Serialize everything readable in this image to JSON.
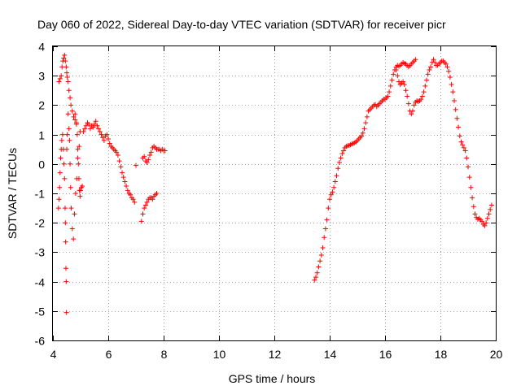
{
  "chart_data": {
    "type": "scatter",
    "title": "Day 060 of 2022, Sidereal Day-to-day VTEC variation (SDTVAR) for receiver picr",
    "xlabel": "GPS time / hours",
    "ylabel": "SDTVAR / TECUs",
    "xlim": [
      4,
      20
    ],
    "ylim": [
      -6,
      4
    ],
    "xticks": [
      "4",
      "6",
      "8",
      "10",
      "12",
      "14",
      "16",
      "18",
      "20"
    ],
    "yticks": [
      "4",
      "3",
      "2",
      "1",
      "0",
      "-1",
      "-2",
      "-3",
      "-4",
      "-5",
      "-6"
    ],
    "grid": true,
    "marker": "plus",
    "color": "#ff0000",
    "series": [
      {
        "name": "SDTVAR",
        "points": [
          [
            4.22,
            2.8
          ],
          [
            4.26,
            2.9
          ],
          [
            4.3,
            3.0
          ],
          [
            4.33,
            3.3
          ],
          [
            4.36,
            3.5
          ],
          [
            4.39,
            3.6
          ],
          [
            4.42,
            3.7
          ],
          [
            4.45,
            3.5
          ],
          [
            4.48,
            3.3
          ],
          [
            4.5,
            3.1
          ],
          [
            4.52,
            2.95
          ],
          [
            4.55,
            2.8
          ],
          [
            4.58,
            2.5
          ],
          [
            4.62,
            2.25
          ],
          [
            4.65,
            2.0
          ],
          [
            4.7,
            1.8
          ],
          [
            4.75,
            1.6
          ],
          [
            4.8,
            1.5
          ],
          [
            4.85,
            1.35
          ],
          [
            4.2,
            -1.5
          ],
          [
            4.22,
            -1.2
          ],
          [
            4.24,
            -0.8
          ],
          [
            4.26,
            -0.3
          ],
          [
            4.28,
            0.2
          ],
          [
            4.3,
            0.5
          ],
          [
            4.32,
            0.8
          ],
          [
            4.35,
            1.0
          ],
          [
            4.38,
            0.5
          ],
          [
            4.4,
            0.0
          ],
          [
            4.42,
            -0.5
          ],
          [
            4.44,
            -1.5
          ],
          [
            4.45,
            -2.0
          ],
          [
            4.46,
            -2.65
          ],
          [
            4.47,
            -3.55
          ],
          [
            4.48,
            -4.0
          ],
          [
            4.49,
            -5.05
          ],
          [
            4.5,
            0.5
          ],
          [
            4.52,
            1.0
          ],
          [
            4.55,
            1.7
          ],
          [
            4.58,
            1.2
          ],
          [
            4.6,
            0.8
          ],
          [
            4.62,
            0.0
          ],
          [
            4.64,
            -0.8
          ],
          [
            4.66,
            -1.5
          ],
          [
            4.7,
            -2.2
          ],
          [
            4.74,
            -2.55
          ],
          [
            4.78,
            -1.7
          ],
          [
            4.82,
            -1.0
          ],
          [
            4.86,
            -0.5
          ],
          [
            4.9,
            0.2
          ],
          [
            4.95,
            0.6
          ],
          [
            4.98,
            1.1
          ],
          [
            4.8,
            1.7
          ],
          [
            4.85,
            1.4
          ],
          [
            4.88,
            1.0
          ],
          [
            4.9,
            0.5
          ],
          [
            4.92,
            0.0
          ],
          [
            4.94,
            -0.5
          ],
          [
            4.96,
            -0.9
          ],
          [
            4.98,
            -1.1
          ],
          [
            5.0,
            -0.9
          ],
          [
            5.03,
            -0.8
          ],
          [
            5.06,
            -0.75
          ],
          [
            5.1,
            1.1
          ],
          [
            5.15,
            1.2
          ],
          [
            5.2,
            1.3
          ],
          [
            5.25,
            1.4
          ],
          [
            5.3,
            1.35
          ],
          [
            5.35,
            1.2
          ],
          [
            5.4,
            1.3
          ],
          [
            5.45,
            1.25
          ],
          [
            5.5,
            1.35
          ],
          [
            5.55,
            1.45
          ],
          [
            5.6,
            1.3
          ],
          [
            5.65,
            1.2
          ],
          [
            5.7,
            1.1
          ],
          [
            5.75,
            1.0
          ],
          [
            5.8,
            0.9
          ],
          [
            5.85,
            0.8
          ],
          [
            5.9,
            0.95
          ],
          [
            5.95,
            1.0
          ],
          [
            6.0,
            0.85
          ],
          [
            6.05,
            0.7
          ],
          [
            6.1,
            0.6
          ],
          [
            6.15,
            0.55
          ],
          [
            6.2,
            0.5
          ],
          [
            6.25,
            0.45
          ],
          [
            6.3,
            0.4
          ],
          [
            6.35,
            0.3
          ],
          [
            6.4,
            0.1
          ],
          [
            6.45,
            -0.1
          ],
          [
            6.5,
            -0.3
          ],
          [
            6.55,
            -0.45
          ],
          [
            6.6,
            -0.6
          ],
          [
            6.65,
            -0.75
          ],
          [
            6.7,
            -0.9
          ],
          [
            6.75,
            -1.0
          ],
          [
            6.8,
            -1.05
          ],
          [
            6.85,
            -1.15
          ],
          [
            6.9,
            -1.2
          ],
          [
            6.95,
            -1.3
          ],
          [
            7.0,
            -0.05
          ],
          [
            7.2,
            -1.95
          ],
          [
            7.25,
            -1.7
          ],
          [
            7.3,
            -1.5
          ],
          [
            7.35,
            -1.4
          ],
          [
            7.4,
            -1.3
          ],
          [
            7.45,
            -1.2
          ],
          [
            7.5,
            -1.15
          ],
          [
            7.55,
            -1.15
          ],
          [
            7.6,
            -1.2
          ],
          [
            7.65,
            -1.1
          ],
          [
            7.7,
            -1.05
          ],
          [
            7.75,
            -1.0
          ],
          [
            7.25,
            0.2
          ],
          [
            7.3,
            0.25
          ],
          [
            7.35,
            0.1
          ],
          [
            7.4,
            0.05
          ],
          [
            7.45,
            0.15
          ],
          [
            7.5,
            0.3
          ],
          [
            7.55,
            0.4
          ],
          [
            7.6,
            0.55
          ],
          [
            7.65,
            0.6
          ],
          [
            7.7,
            0.55
          ],
          [
            7.75,
            0.5
          ],
          [
            7.8,
            0.5
          ],
          [
            7.85,
            0.5
          ],
          [
            7.9,
            0.45
          ],
          [
            7.95,
            0.5
          ],
          [
            8.0,
            0.45
          ],
          [
            8.05,
            0.45
          ],
          [
            13.45,
            -3.95
          ],
          [
            13.5,
            -3.85
          ],
          [
            13.55,
            -3.7
          ],
          [
            13.6,
            -3.5
          ],
          [
            13.65,
            -3.3
          ],
          [
            13.7,
            -3.1
          ],
          [
            13.75,
            -2.85
          ],
          [
            13.8,
            -2.5
          ],
          [
            13.85,
            -2.2
          ],
          [
            13.9,
            -1.9
          ],
          [
            13.95,
            -1.5
          ],
          [
            14.0,
            -1.2
          ],
          [
            14.05,
            -1.05
          ],
          [
            14.1,
            -0.95
          ],
          [
            14.15,
            -0.8
          ],
          [
            14.2,
            -0.6
          ],
          [
            14.25,
            -0.4
          ],
          [
            14.3,
            -0.15
          ],
          [
            14.35,
            0.05
          ],
          [
            14.4,
            0.2
          ],
          [
            14.45,
            0.35
          ],
          [
            14.5,
            0.45
          ],
          [
            14.55,
            0.55
          ],
          [
            14.6,
            0.6
          ],
          [
            14.65,
            0.62
          ],
          [
            14.7,
            0.63
          ],
          [
            14.75,
            0.65
          ],
          [
            14.8,
            0.68
          ],
          [
            14.85,
            0.7
          ],
          [
            14.9,
            0.72
          ],
          [
            14.95,
            0.75
          ],
          [
            15.0,
            0.8
          ],
          [
            15.05,
            0.85
          ],
          [
            15.1,
            0.9
          ],
          [
            15.15,
            0.95
          ],
          [
            15.2,
            1.05
          ],
          [
            15.25,
            1.2
          ],
          [
            15.3,
            1.4
          ],
          [
            15.35,
            1.6
          ],
          [
            15.4,
            1.8
          ],
          [
            15.45,
            1.85
          ],
          [
            15.5,
            1.9
          ],
          [
            15.55,
            1.95
          ],
          [
            15.6,
            2.0
          ],
          [
            15.65,
            2.02
          ],
          [
            15.7,
            1.95
          ],
          [
            15.75,
            2.0
          ],
          [
            15.8,
            2.05
          ],
          [
            15.85,
            2.1
          ],
          [
            15.9,
            2.15
          ],
          [
            15.95,
            2.2
          ],
          [
            16.0,
            2.2
          ],
          [
            16.05,
            2.25
          ],
          [
            16.1,
            2.3
          ],
          [
            16.15,
            2.45
          ],
          [
            16.2,
            2.65
          ],
          [
            16.25,
            2.85
          ],
          [
            16.3,
            3.05
          ],
          [
            16.35,
            3.2
          ],
          [
            16.4,
            3.3
          ],
          [
            16.45,
            3.35
          ],
          [
            16.5,
            3.32
          ],
          [
            16.55,
            3.35
          ],
          [
            16.6,
            3.4
          ],
          [
            16.65,
            3.45
          ],
          [
            16.7,
            3.42
          ],
          [
            16.75,
            3.4
          ],
          [
            16.8,
            3.35
          ],
          [
            16.85,
            3.3
          ],
          [
            16.9,
            3.35
          ],
          [
            16.95,
            3.4
          ],
          [
            17.0,
            3.45
          ],
          [
            17.05,
            3.5
          ],
          [
            17.1,
            3.55
          ],
          [
            16.4,
            3.2
          ],
          [
            16.45,
            3.0
          ],
          [
            16.5,
            2.8
          ],
          [
            16.55,
            2.7
          ],
          [
            16.6,
            2.75
          ],
          [
            16.65,
            2.8
          ],
          [
            16.7,
            2.7
          ],
          [
            16.75,
            2.5
          ],
          [
            16.8,
            2.3
          ],
          [
            16.85,
            2.05
          ],
          [
            16.9,
            1.8
          ],
          [
            16.95,
            1.7
          ],
          [
            17.0,
            1.8
          ],
          [
            17.05,
            2.0
          ],
          [
            17.1,
            2.1
          ],
          [
            17.15,
            2.15
          ],
          [
            17.2,
            2.12
          ],
          [
            17.25,
            2.15
          ],
          [
            17.3,
            2.2
          ],
          [
            17.35,
            2.3
          ],
          [
            17.4,
            2.45
          ],
          [
            17.45,
            2.65
          ],
          [
            17.5,
            2.85
          ],
          [
            17.55,
            3.05
          ],
          [
            17.6,
            3.2
          ],
          [
            17.65,
            3.3
          ],
          [
            17.7,
            3.45
          ],
          [
            17.75,
            3.55
          ],
          [
            17.8,
            3.45
          ],
          [
            17.85,
            3.35
          ],
          [
            17.9,
            3.35
          ],
          [
            17.95,
            3.4
          ],
          [
            18.0,
            3.45
          ],
          [
            18.05,
            3.5
          ],
          [
            18.1,
            3.5
          ],
          [
            18.15,
            3.45
          ],
          [
            18.2,
            3.4
          ],
          [
            18.25,
            3.3
          ],
          [
            18.3,
            3.15
          ],
          [
            18.35,
            2.95
          ],
          [
            18.4,
            2.7
          ],
          [
            18.45,
            2.45
          ],
          [
            18.5,
            2.15
          ],
          [
            18.55,
            1.85
          ],
          [
            18.6,
            1.55
          ],
          [
            18.65,
            1.25
          ],
          [
            18.7,
            0.95
          ],
          [
            18.75,
            0.75
          ],
          [
            18.8,
            0.65
          ],
          [
            18.85,
            0.55
          ],
          [
            18.9,
            0.45
          ],
          [
            18.95,
            0.2
          ],
          [
            19.0,
            -0.1
          ],
          [
            19.05,
            -0.45
          ],
          [
            19.1,
            -0.8
          ],
          [
            19.15,
            -1.15
          ],
          [
            19.2,
            -1.45
          ],
          [
            19.25,
            -1.7
          ],
          [
            19.3,
            -1.82
          ],
          [
            19.35,
            -1.88
          ],
          [
            19.4,
            -1.85
          ],
          [
            19.45,
            -1.9
          ],
          [
            19.5,
            -1.95
          ],
          [
            19.55,
            -2.05
          ],
          [
            19.6,
            -2.1
          ],
          [
            19.65,
            -2.0
          ],
          [
            19.7,
            -1.85
          ],
          [
            19.75,
            -1.7
          ],
          [
            19.8,
            -1.55
          ],
          [
            19.85,
            -1.4
          ]
        ]
      }
    ]
  }
}
